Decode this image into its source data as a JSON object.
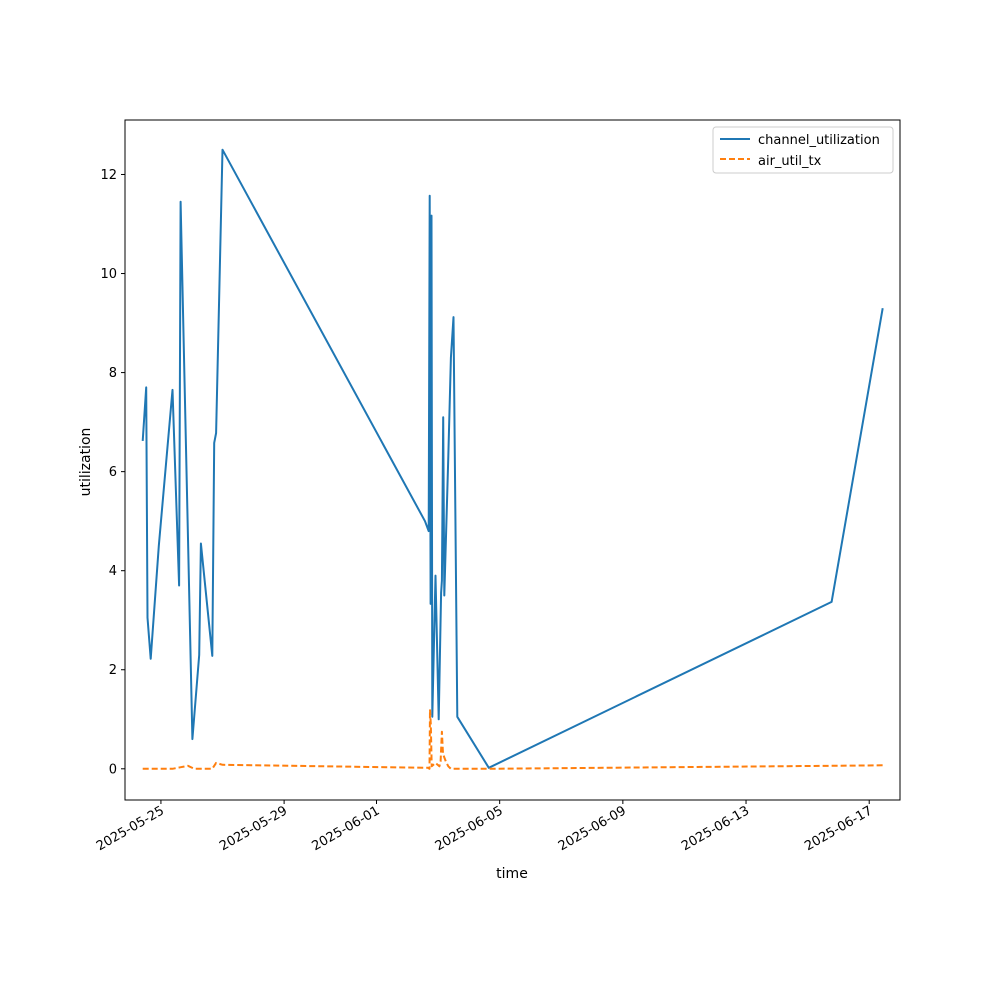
{
  "chart_data": {
    "type": "line",
    "xlabel": "time",
    "ylabel": "utilization",
    "x_axis": "date",
    "xlim": [
      "2025-05-23T20:00",
      "2025-06-18T00:00"
    ],
    "ylim": [
      -0.63,
      13.1
    ],
    "xticks": [
      "2025-05-25",
      "2025-05-29",
      "2025-06-01",
      "2025-06-05",
      "2025-06-09",
      "2025-06-13",
      "2025-06-17"
    ],
    "yticks": [
      0,
      2,
      4,
      6,
      8,
      10,
      12
    ],
    "grid": false,
    "legend": "top-right",
    "series": [
      {
        "name": "channel_utilization",
        "color": "#1f77b4",
        "style": "solid",
        "points": [
          [
            "2025-05-24T09:50",
            6.62
          ],
          [
            "2025-05-24T12:30",
            7.7
          ],
          [
            "2025-05-24T13:30",
            3.05
          ],
          [
            "2025-05-24T16:00",
            2.22
          ],
          [
            "2025-05-24T22:20",
            4.5
          ],
          [
            "2025-05-25T09:00",
            7.65
          ],
          [
            "2025-05-25T14:10",
            3.7
          ],
          [
            "2025-05-25T15:20",
            11.45
          ],
          [
            "2025-05-26T00:30",
            0.6
          ],
          [
            "2025-05-26T05:50",
            2.3
          ],
          [
            "2025-05-26T07:10",
            4.55
          ],
          [
            "2025-05-26T16:00",
            2.28
          ],
          [
            "2025-05-26T17:30",
            6.58
          ],
          [
            "2025-05-26T19:00",
            6.78
          ],
          [
            "2025-05-27T00:00",
            12.5
          ],
          [
            "2025-06-02T13:50",
            5.0
          ],
          [
            "2025-06-02T16:40",
            4.8
          ],
          [
            "2025-06-02T17:30",
            11.57
          ],
          [
            "2025-06-02T18:10",
            3.33
          ],
          [
            "2025-06-02T18:50",
            11.17
          ],
          [
            "2025-06-02T19:30",
            1.05
          ],
          [
            "2025-06-02T22:00",
            3.9
          ],
          [
            "2025-06-03T00:30",
            1.0
          ],
          [
            "2025-06-03T02:20",
            3.55
          ],
          [
            "2025-06-03T03:00",
            3.8
          ],
          [
            "2025-06-03T04:00",
            7.1
          ],
          [
            "2025-06-03T04:50",
            3.5
          ],
          [
            "2025-06-03T08:00",
            6.3
          ],
          [
            "2025-06-03T10:00",
            8.3
          ],
          [
            "2025-06-03T12:00",
            9.12
          ],
          [
            "2025-06-03T15:00",
            1.05
          ],
          [
            "2025-06-04T15:30",
            0.02
          ],
          [
            "2025-06-15T18:40",
            3.37
          ],
          [
            "2025-06-17T10:30",
            9.3
          ]
        ]
      },
      {
        "name": "air_util_tx",
        "color": "#ff7f0e",
        "style": "dashed",
        "points": [
          [
            "2025-05-24T09:50",
            0.0
          ],
          [
            "2025-05-24T16:00",
            0.0
          ],
          [
            "2025-05-25T09:00",
            0.0
          ],
          [
            "2025-05-25T15:00",
            0.03
          ],
          [
            "2025-05-25T21:00",
            0.06
          ],
          [
            "2025-05-26T02:00",
            0.0
          ],
          [
            "2025-05-26T16:00",
            0.0
          ],
          [
            "2025-05-26T19:00",
            0.12
          ],
          [
            "2025-05-27T00:00",
            0.08
          ],
          [
            "2025-06-02T16:00",
            0.02
          ],
          [
            "2025-06-02T17:20",
            0.0
          ],
          [
            "2025-06-02T17:40",
            1.2
          ],
          [
            "2025-06-02T18:20",
            0.9
          ],
          [
            "2025-06-02T19:00",
            0.05
          ],
          [
            "2025-06-02T22:00",
            0.12
          ],
          [
            "2025-06-03T01:00",
            0.05
          ],
          [
            "2025-06-03T02:00",
            0.15
          ],
          [
            "2025-06-03T03:00",
            0.75
          ],
          [
            "2025-06-03T03:50",
            0.3
          ],
          [
            "2025-06-03T06:00",
            0.15
          ],
          [
            "2025-06-03T08:00",
            0.05
          ],
          [
            "2025-06-03T10:00",
            0.0
          ],
          [
            "2025-06-04T15:30",
            0.0
          ],
          [
            "2025-06-15T18:40",
            0.06
          ],
          [
            "2025-06-17T10:30",
            0.07
          ]
        ]
      }
    ]
  }
}
